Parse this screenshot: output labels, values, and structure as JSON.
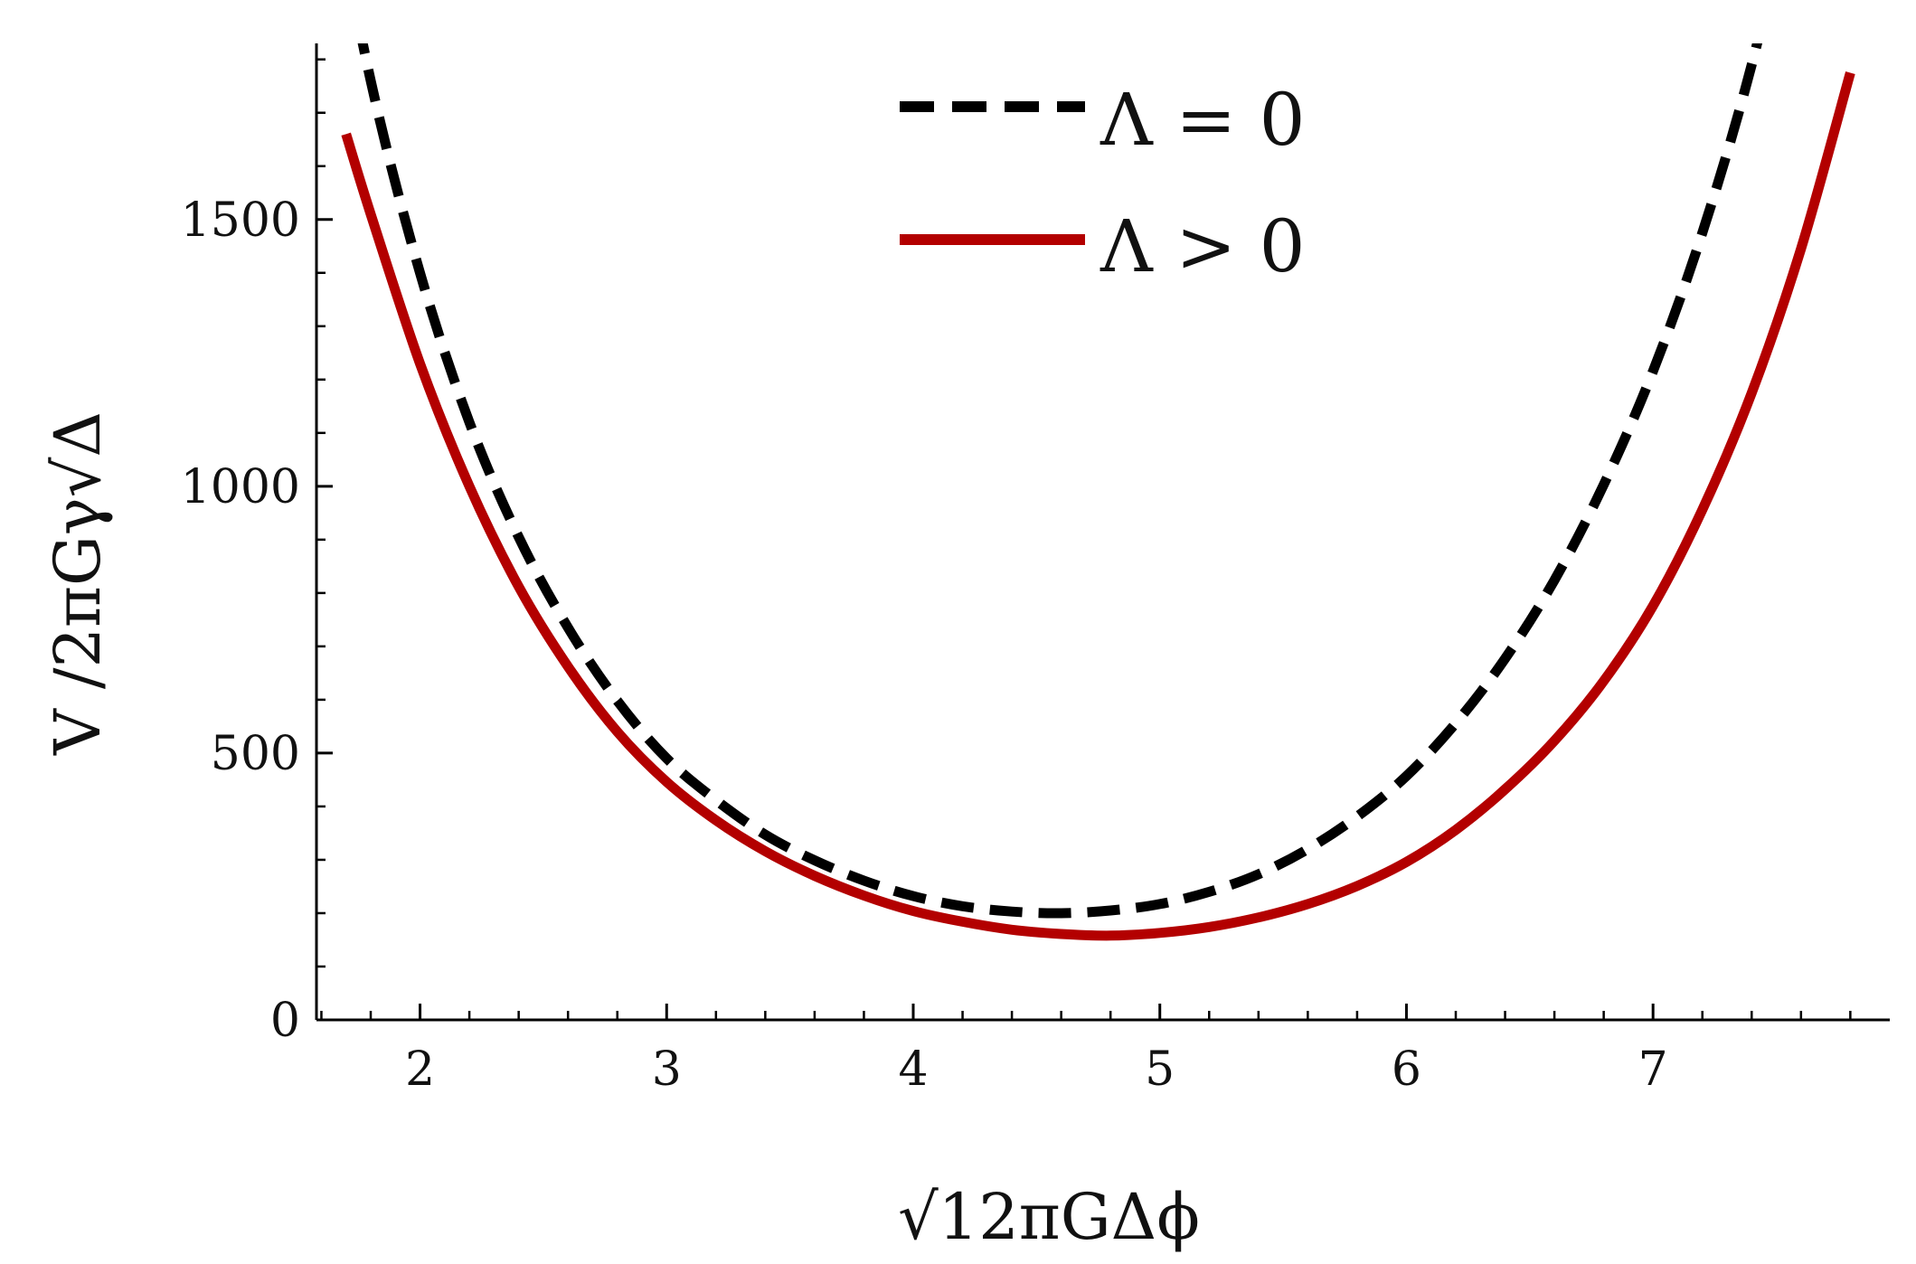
{
  "chart_data": {
    "type": "line",
    "title": "",
    "xlabel": "√12πGΔϕ",
    "ylabel": "V /2πGγ√Δ",
    "xlim": [
      1.58,
      7.96
    ],
    "ylim": [
      0,
      1830
    ],
    "x_ticks": [
      2,
      3,
      4,
      5,
      6,
      7
    ],
    "y_ticks": [
      0,
      500,
      1000,
      1500
    ],
    "x_minor_step": 0.2,
    "y_minor_step": 100,
    "grid": false,
    "legend_position": "top-center",
    "series": [
      {
        "name": "Λ = 0",
        "style": "dashed",
        "color": "#000000",
        "x": [
          1.6,
          1.8,
          2.0,
          2.2,
          2.4,
          2.6,
          2.8,
          3.0,
          3.2,
          3.4,
          3.6,
          3.8,
          4.0,
          4.2,
          4.4,
          4.6,
          4.8,
          5.0,
          5.2,
          5.4,
          5.6,
          5.8,
          6.0,
          6.2,
          6.4,
          6.6,
          6.8,
          7.0,
          7.2,
          7.4,
          7.6
        ],
        "y": [
          2230,
          1760,
          1400,
          1120,
          905,
          735,
          598,
          490,
          412,
          347,
          299,
          261,
          232,
          213,
          203,
          200,
          205,
          217,
          240,
          273,
          320,
          381,
          457,
          556,
          677,
          824,
          1003,
          1216,
          1475,
          1790,
          2180
        ]
      },
      {
        "name": "Λ > 0",
        "style": "solid",
        "color": "#b30000",
        "x": [
          1.7,
          1.8,
          2.0,
          2.2,
          2.4,
          2.6,
          2.8,
          3.0,
          3.2,
          3.4,
          3.6,
          3.8,
          4.0,
          4.2,
          4.4,
          4.6,
          4.8,
          5.0,
          5.2,
          5.4,
          5.6,
          5.8,
          6.0,
          6.2,
          6.4,
          6.6,
          6.8,
          7.0,
          7.2,
          7.4,
          7.6,
          7.8
        ],
        "y": [
          1660,
          1510,
          1230,
          1000,
          812,
          662,
          540,
          446,
          374,
          316,
          270,
          233,
          204,
          184,
          169,
          161,
          158,
          163,
          174,
          192,
          217,
          251,
          296,
          356,
          432,
          523,
          635,
          776,
          956,
          1175,
          1445,
          1775
        ]
      }
    ]
  }
}
